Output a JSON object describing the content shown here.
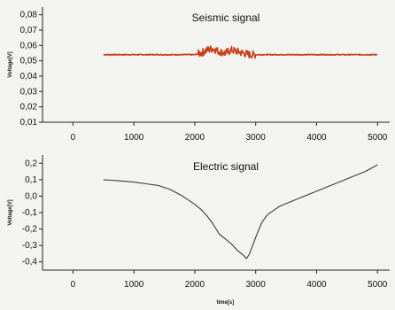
{
  "chart_data": [
    {
      "type": "line",
      "title": "Seismic signal",
      "xlabel": "",
      "ylabel": "Voltage[V]",
      "xlim": [
        -500,
        5200
      ],
      "ylim": [
        0.01,
        0.085
      ],
      "xticks": [
        0,
        1000,
        2000,
        3000,
        4000,
        5000
      ],
      "xtick_labels": [
        "0",
        "1000",
        "2000",
        "3000",
        "4000",
        "5000"
      ],
      "yticks": [
        0.01,
        0.02,
        0.03,
        0.04,
        0.05,
        0.06,
        0.07,
        0.08
      ],
      "ytick_labels": [
        "0,01",
        "0,02",
        "0,03",
        "0,04",
        "0,05",
        "0,06",
        "0,07",
        "0,08"
      ],
      "grid": false,
      "legend": "none",
      "series": [
        {
          "color": "#c8401c",
          "x": [
            500,
            1000,
            1500,
            2000,
            2100,
            2200,
            2300,
            2400,
            2500,
            2600,
            2700,
            2800,
            2900,
            3000,
            3100,
            3500,
            4000,
            4500,
            5000
          ],
          "y": [
            0.054,
            0.054,
            0.054,
            0.054,
            0.055,
            0.057,
            0.058,
            0.056,
            0.055,
            0.057,
            0.056,
            0.055,
            0.054,
            0.054,
            0.054,
            0.054,
            0.054,
            0.054,
            0.054
          ],
          "noisy_x_range": [
            2050,
            3000
          ],
          "noise_amplitude": 0.0025
        }
      ]
    },
    {
      "type": "line",
      "title": "Electric signal",
      "xlabel": "time[s]",
      "ylabel": "Voltage[V]",
      "xlim": [
        -500,
        5200
      ],
      "ylim": [
        -0.45,
        0.25
      ],
      "xticks": [
        0,
        1000,
        2000,
        3000,
        4000,
        5000
      ],
      "xtick_labels": [
        "0",
        "1000",
        "2000",
        "3000",
        "4000",
        "5000"
      ],
      "yticks": [
        -0.4,
        -0.3,
        -0.2,
        -0.1,
        0.0,
        0.1,
        0.2
      ],
      "ytick_labels": [
        "-0,4",
        "-0,3",
        "-0,2",
        "-0,1",
        "0,0",
        "0,1",
        "0,2"
      ],
      "grid": false,
      "legend": "none",
      "series": [
        {
          "color": "#3a3a3a",
          "x": [
            500,
            700,
            1000,
            1200,
            1400,
            1600,
            1800,
            2000,
            2100,
            2200,
            2300,
            2400,
            2500,
            2600,
            2700,
            2800,
            2850,
            2900,
            3000,
            3100,
            3200,
            3400,
            3600,
            3800,
            4000,
            4200,
            4400,
            4600,
            4800,
            5000
          ],
          "y": [
            0.1,
            0.095,
            0.085,
            0.075,
            0.065,
            0.04,
            0.0,
            -0.05,
            -0.08,
            -0.12,
            -0.17,
            -0.23,
            -0.26,
            -0.29,
            -0.33,
            -0.36,
            -0.38,
            -0.35,
            -0.25,
            -0.16,
            -0.11,
            -0.06,
            -0.03,
            0.0,
            0.03,
            0.06,
            0.09,
            0.12,
            0.15,
            0.19
          ]
        }
      ]
    }
  ]
}
